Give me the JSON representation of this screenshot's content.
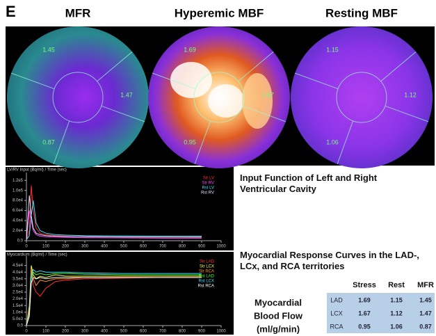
{
  "panel_letter": "E",
  "polar_maps": [
    {
      "title": "MFR",
      "labels": [
        "1.45",
        "1.47",
        "0.87"
      ]
    },
    {
      "title": "Hyperemic MBF",
      "labels": [
        "1.69",
        "1.67",
        "0.95"
      ]
    },
    {
      "title": "Resting MBF",
      "labels": [
        "1.15",
        "1.12",
        "1.06"
      ]
    }
  ],
  "captions": {
    "input_function": "Input Function of Left and Right Ventricular Cavity",
    "response_curves": "Myocardial Response Curves in the LAD-, LCx, and RCA territories"
  },
  "table": {
    "label": [
      "Myocardial",
      "Blood Flow",
      "(ml/g/min)"
    ],
    "headers": [
      "Stress",
      "Rest",
      "MFR"
    ],
    "rows": [
      [
        "LAD",
        "1.69",
        "1.15",
        "1.45"
      ],
      [
        "LCX",
        "1.67",
        "1.12",
        "1.47"
      ],
      [
        "RCA",
        "0.95",
        "1.06",
        "0.87"
      ]
    ]
  },
  "chart_data": [
    {
      "type": "line",
      "title": "LV/RV Input (Bq/ml) / Time (sec)",
      "x": [
        0,
        15,
        25,
        35,
        50,
        70,
        100,
        150,
        200,
        300,
        500,
        700,
        900
      ],
      "xlim": [
        0,
        1000
      ],
      "xticks": [
        0,
        100,
        200,
        300,
        400,
        500,
        600,
        700,
        800,
        900,
        1000
      ],
      "ylim": [
        0,
        130000
      ],
      "yticks": [
        {
          "value": 0,
          "label": "0.0"
        },
        {
          "value": 20000,
          "label": "2.0e4"
        },
        {
          "value": 40000,
          "label": "4.0e4"
        },
        {
          "value": 60000,
          "label": "6.0e4"
        },
        {
          "value": 80000,
          "label": "8.0e4"
        },
        {
          "value": 100000,
          "label": "1.0e5"
        },
        {
          "value": 120000,
          "label": "1.2e5"
        }
      ],
      "series": [
        {
          "name": "Str LV",
          "color": "#ff3030",
          "values": [
            2000,
            20000,
            110000,
            60000,
            25000,
            15000,
            12000,
            10000,
            9000,
            8000,
            7500,
            7000,
            6500
          ]
        },
        {
          "name": "Str RV",
          "color": "#ff40ff",
          "values": [
            2000,
            60000,
            40000,
            20000,
            12000,
            9000,
            8000,
            7000,
            6500,
            6000,
            5500,
            5000,
            5000
          ]
        },
        {
          "name": "Rst LV",
          "color": "#40e0ff",
          "values": [
            2000,
            10000,
            50000,
            80000,
            35000,
            20000,
            15000,
            12000,
            11000,
            10000,
            9500,
            9000,
            9000
          ]
        },
        {
          "name": "Rst RV",
          "color": "#e0e0ff",
          "values": [
            2000,
            90000,
            50000,
            25000,
            15000,
            12000,
            10000,
            9000,
            8500,
            8000,
            7500,
            7000,
            7000
          ]
        }
      ]
    },
    {
      "type": "line",
      "title": "Myocardium (Bq/ml) / Time (sec)",
      "x": [
        0,
        15,
        25,
        35,
        50,
        70,
        100,
        150,
        200,
        300,
        500,
        700,
        900
      ],
      "xlim": [
        0,
        1000
      ],
      "xticks": [
        0,
        100,
        200,
        300,
        400,
        500,
        600,
        700,
        800,
        900,
        1000
      ],
      "ylim": [
        0,
        50000
      ],
      "yticks": [
        {
          "value": 0,
          "label": "0.0"
        },
        {
          "value": 5000,
          "label": "5.0e3"
        },
        {
          "value": 10000,
          "label": "1.0e4"
        },
        {
          "value": 15000,
          "label": "1.5e4"
        },
        {
          "value": 20000,
          "label": "2.0e4"
        },
        {
          "value": 25000,
          "label": "2.5e4"
        },
        {
          "value": 30000,
          "label": "3.0e4"
        },
        {
          "value": 35000,
          "label": "3.5e4"
        },
        {
          "value": 40000,
          "label": "4.0e4"
        },
        {
          "value": 45000,
          "label": "4.5e4"
        }
      ],
      "series": [
        {
          "name": "Str LAD",
          "color": "#ff3030",
          "values": [
            0,
            10000,
            40000,
            30000,
            25000,
            22000,
            28000,
            33000,
            34000,
            35000,
            35500,
            36000,
            36000
          ]
        },
        {
          "name": "Str LCX",
          "color": "#ffff40",
          "values": [
            0,
            15000,
            45000,
            38000,
            35000,
            37000,
            36000,
            38000,
            37000,
            37000,
            37000,
            37000,
            37000
          ]
        },
        {
          "name": "Str RCA",
          "color": "#ff9020",
          "values": [
            0,
            12000,
            42000,
            35000,
            30000,
            34000,
            33000,
            35000,
            35000,
            36000,
            36000,
            36000,
            36000
          ]
        },
        {
          "name": "Rst LAD",
          "color": "#40ff40",
          "values": [
            0,
            8000,
            35000,
            40000,
            38000,
            39000,
            38000,
            39000,
            39000,
            38500,
            38000,
            38000,
            38000
          ]
        },
        {
          "name": "Rst LCX",
          "color": "#40e0ff",
          "values": [
            0,
            9000,
            38000,
            42000,
            40000,
            41000,
            40000,
            40000,
            40000,
            39500,
            39000,
            39000,
            39000
          ]
        },
        {
          "name": "Rst RCA",
          "color": "#ffffff",
          "values": [
            0,
            7000,
            32000,
            36000,
            35000,
            36000,
            35000,
            36000,
            36000,
            36000,
            36000,
            36000,
            36000
          ]
        }
      ]
    }
  ]
}
